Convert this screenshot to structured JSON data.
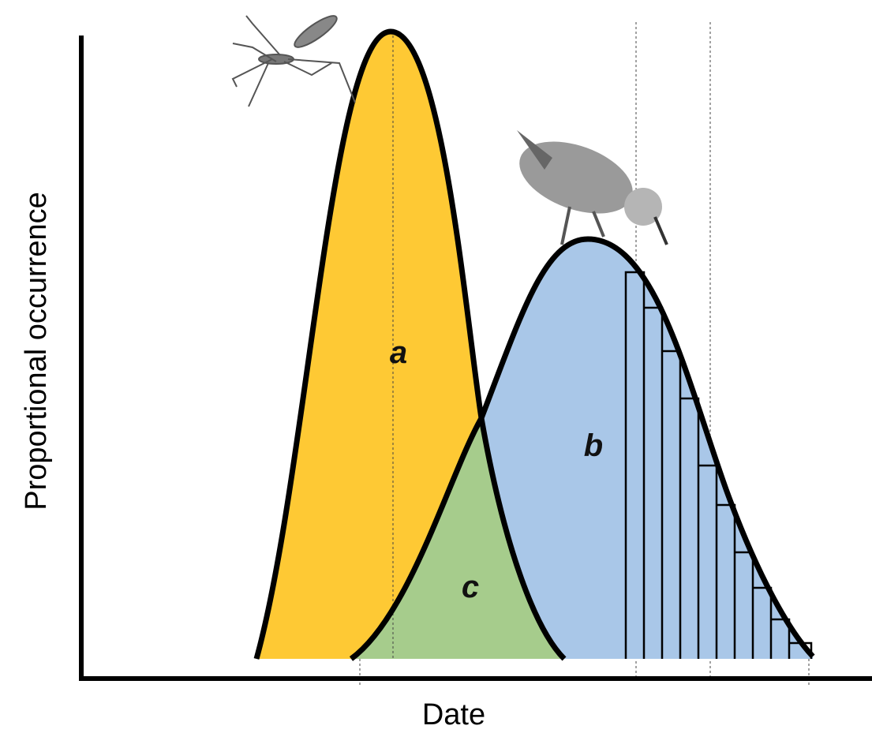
{
  "axes": {
    "y_label": "Proportional occurrence",
    "x_label": "Date"
  },
  "regions": [
    {
      "label": "a"
    },
    {
      "label": "b"
    },
    {
      "label": "c"
    }
  ]
}
